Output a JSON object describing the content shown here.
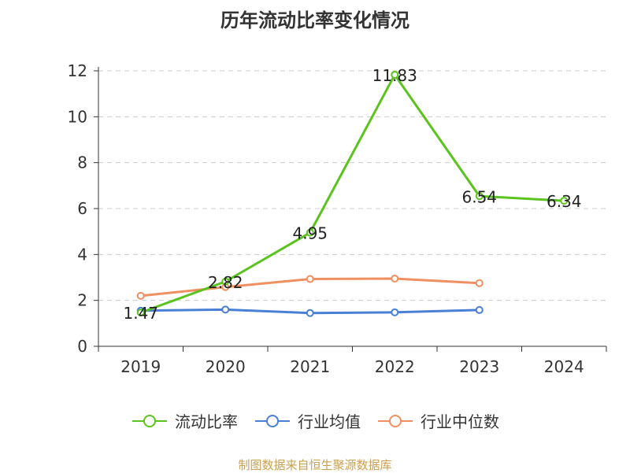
{
  "title": "历年流动比率变化情况",
  "source": "制图数据来自恒生聚源数据库",
  "chart_data": {
    "type": "line",
    "categories": [
      "2019",
      "2020",
      "2021",
      "2022",
      "2023",
      "2024"
    ],
    "ylim": [
      0,
      12
    ],
    "yticks": [
      0,
      2,
      4,
      6,
      8,
      10,
      12
    ],
    "grid": true,
    "legend_position": "bottom",
    "series": [
      {
        "name": "流动比率",
        "color": "#5bc31e",
        "values": [
          1.47,
          2.82,
          4.95,
          11.83,
          6.54,
          6.34
        ],
        "labels": [
          "1.47",
          "2.82",
          "4.95",
          "11.83",
          "6.54",
          "6.34"
        ]
      },
      {
        "name": "行业均值",
        "color": "#4a7fd6",
        "values": [
          1.55,
          1.6,
          1.45,
          1.48,
          1.58,
          null
        ],
        "labels": null
      },
      {
        "name": "行业中位数",
        "color": "#f09060",
        "values": [
          2.2,
          2.58,
          2.93,
          2.95,
          2.75,
          null
        ],
        "labels": null
      }
    ]
  }
}
